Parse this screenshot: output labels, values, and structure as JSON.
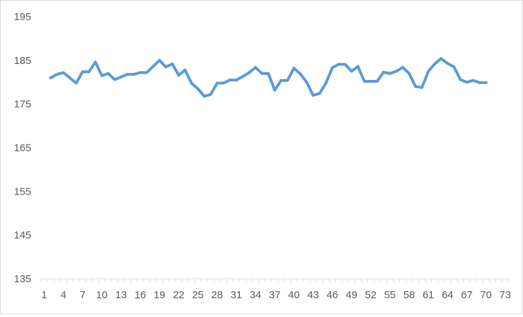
{
  "chart_data": {
    "type": "line",
    "title": "",
    "xlabel": "",
    "ylabel": "",
    "ylim": [
      135,
      195
    ],
    "yticks": [
      135,
      145,
      155,
      165,
      175,
      185,
      195
    ],
    "xlim": [
      0.5,
      73.5
    ],
    "xticks": [
      1,
      4,
      7,
      10,
      13,
      16,
      19,
      22,
      25,
      28,
      31,
      34,
      37,
      40,
      43,
      46,
      49,
      52,
      55,
      58,
      61,
      64,
      67,
      70,
      73
    ],
    "grid": false,
    "legend": "none",
    "series": [
      {
        "color": "#5b9bd5",
        "x": [
          2,
          3,
          4,
          5,
          6,
          7,
          8,
          9,
          10,
          11,
          12,
          13,
          14,
          15,
          16,
          17,
          18,
          19,
          20,
          21,
          22,
          23,
          24,
          25,
          26,
          27,
          28,
          29,
          30,
          31,
          32,
          33,
          34,
          35,
          36,
          37,
          38,
          39,
          40,
          41,
          42,
          43,
          44,
          45,
          46,
          47,
          48,
          49,
          50,
          51,
          52,
          53,
          54,
          55,
          56,
          57,
          58,
          59,
          60,
          61,
          62,
          63,
          64,
          65,
          66,
          67,
          68,
          69,
          70
        ],
        "values": [
          181.0,
          181.8,
          182.2,
          181.0,
          179.8,
          182.4,
          182.4,
          184.6,
          181.5,
          182.0,
          180.6,
          181.2,
          181.8,
          181.8,
          182.2,
          182.2,
          183.6,
          185.0,
          183.5,
          184.2,
          181.6,
          182.8,
          179.8,
          178.5,
          176.8,
          177.2,
          179.8,
          179.8,
          180.5,
          180.5,
          181.3,
          182.2,
          183.4,
          182.0,
          182.0,
          178.2,
          180.4,
          180.4,
          183.2,
          181.9,
          180.0,
          177.0,
          177.4,
          179.8,
          183.3,
          184.1,
          184.1,
          182.5,
          183.6,
          180.2,
          180.2,
          180.2,
          182.3,
          182.0,
          182.5,
          183.4,
          182.0,
          179.0,
          178.8,
          182.5,
          184.2,
          185.4,
          184.3,
          183.5,
          180.6,
          180.0,
          180.4,
          179.9,
          179.9
        ]
      }
    ]
  }
}
